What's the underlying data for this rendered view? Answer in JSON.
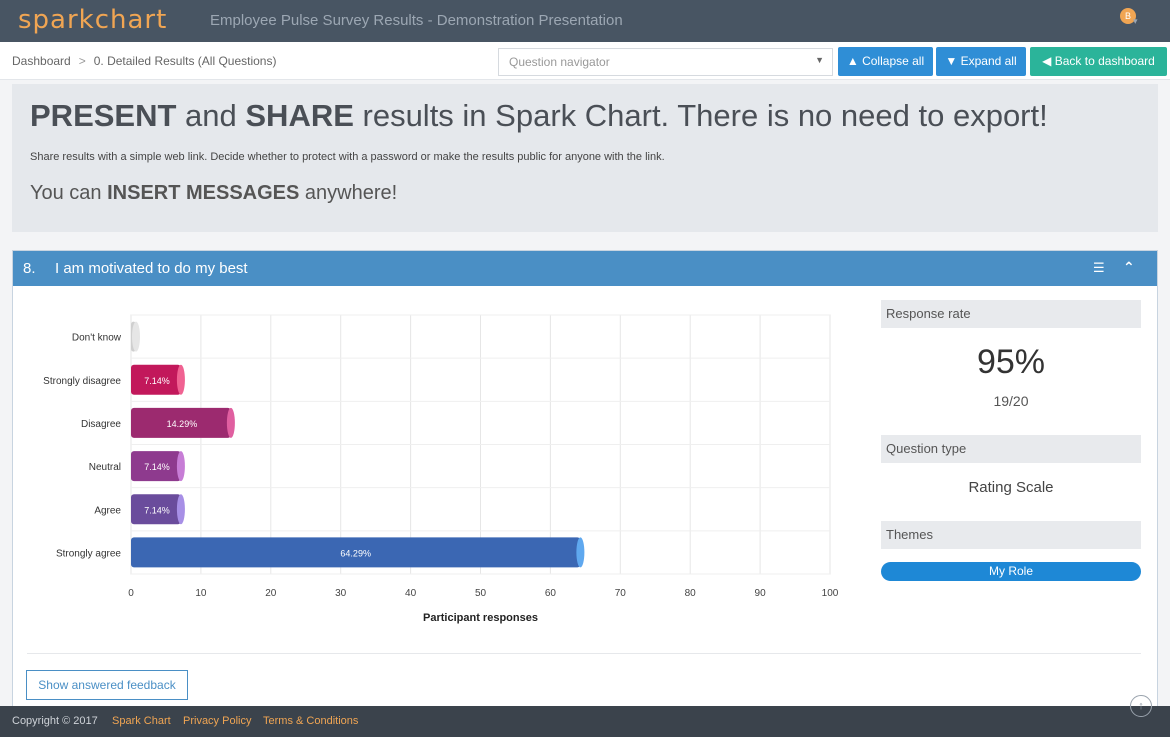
{
  "app": {
    "logo": "sparkchart",
    "title": "Employee Pulse Survey Results - Demonstration Presentation",
    "user_initial": "B"
  },
  "breadcrumb": {
    "home": "Dashboard",
    "separator": ">",
    "current": "0. Detailed Results (All Questions)"
  },
  "toolbar": {
    "navigator_placeholder": "Question navigator",
    "collapse_label": "Collapse all",
    "expand_label": "Expand all",
    "back_label": "Back to dashboard"
  },
  "message": {
    "headline_parts": [
      "PRESENT",
      " and ",
      "SHARE",
      " results in Spark Chart. There is no need to export!"
    ],
    "subtext": "Share results with a simple web link. Decide whether to protect with a password or make the results public for anyone with the link.",
    "insert_parts": [
      "You can ",
      "INSERT MESSAGES",
      " anywhere!"
    ]
  },
  "question": {
    "number": "8.",
    "title": "I am motivated to do my best",
    "show_feedback_label": "Show answered feedback"
  },
  "chart_data": {
    "type": "bar",
    "orientation": "horizontal",
    "categories": [
      "Don't know",
      "Strongly disagree",
      "Disagree",
      "Neutral",
      "Agree",
      "Strongly agree"
    ],
    "values": [
      0,
      7.14,
      14.29,
      7.14,
      7.14,
      64.29
    ],
    "data_labels": [
      "",
      "7.14%",
      "14.29%",
      "7.14%",
      "7.14%",
      "64.29%"
    ],
    "colors": [
      "#cfcfcf",
      "#c2185b",
      "#9c2a6f",
      "#8e3a8e",
      "#6a4c9c",
      "#3b67b3"
    ],
    "cap_colors": [
      "#e6e6e6",
      "#f06292",
      "#e05fa0",
      "#c77dd6",
      "#a78fe6",
      "#5fa8ef"
    ],
    "xlabel": "Participant responses",
    "xlim": [
      0,
      100
    ],
    "xticks": [
      "0",
      "10",
      "20",
      "30",
      "40",
      "50",
      "60",
      "70",
      "80",
      "90",
      "100"
    ],
    "grid": true
  },
  "side": {
    "response_rate_label": "Response rate",
    "response_rate_value": "95%",
    "response_rate_count": "19/20",
    "question_type_label": "Question type",
    "question_type_value": "Rating Scale",
    "themes_label": "Themes",
    "theme": "My Role"
  },
  "footer": {
    "copyright": "Copyright © 2017",
    "links": [
      "Spark Chart",
      "Privacy Policy",
      "Terms & Conditions"
    ]
  }
}
